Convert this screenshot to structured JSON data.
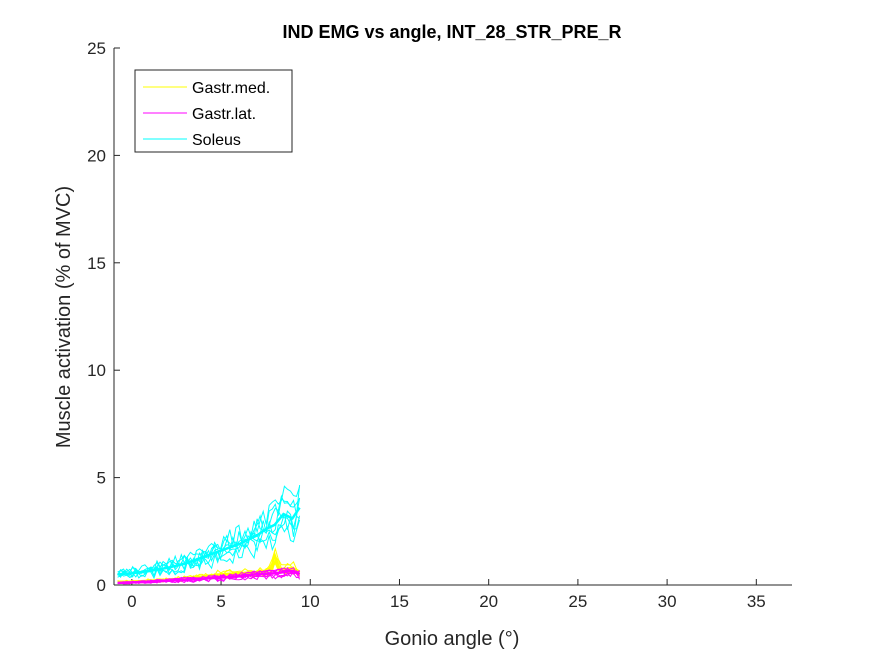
{
  "chart_data": {
    "type": "line",
    "title": "IND EMG vs angle, INT_28_STR_PRE_R",
    "xlabel": "Gonio angle (°)",
    "ylabel": "Muscle activation (% of MVC)",
    "xlim": [
      -1,
      37
    ],
    "ylim": [
      0,
      25
    ],
    "xticks": [
      0,
      5,
      10,
      15,
      20,
      25,
      30,
      35
    ],
    "yticks": [
      0,
      5,
      10,
      15,
      20,
      25
    ],
    "grid": false,
    "legend_location": "top-left",
    "series": [
      {
        "name": "Gastr.med.",
        "color": "#FFFF00",
        "x": [
          -0.8,
          0,
          1,
          2,
          3,
          4,
          5,
          6,
          7,
          7.8,
          8,
          8.3,
          9,
          9.4
        ],
        "y": [
          0.15,
          0.15,
          0.2,
          0.25,
          0.3,
          0.4,
          0.5,
          0.55,
          0.6,
          0.7,
          1.4,
          0.7,
          0.8,
          0.6
        ]
      },
      {
        "name": "Gastr.lat.",
        "color": "#FF00FF",
        "x": [
          -0.8,
          0,
          1,
          2,
          3,
          4,
          5,
          6,
          7,
          8,
          9,
          9.4
        ],
        "y": [
          0.1,
          0.12,
          0.15,
          0.2,
          0.25,
          0.3,
          0.35,
          0.4,
          0.5,
          0.55,
          0.65,
          0.5
        ]
      },
      {
        "name": "Soleus",
        "color": "#00FFFF",
        "x": [
          -0.8,
          0,
          1,
          2,
          3,
          4,
          5,
          6,
          7,
          7.5,
          8,
          8.5,
          9,
          9.4
        ],
        "y": [
          0.5,
          0.55,
          0.65,
          0.8,
          1.0,
          1.3,
          1.6,
          1.9,
          2.3,
          2.6,
          2.8,
          3.3,
          3.1,
          3.6
        ]
      }
    ]
  }
}
